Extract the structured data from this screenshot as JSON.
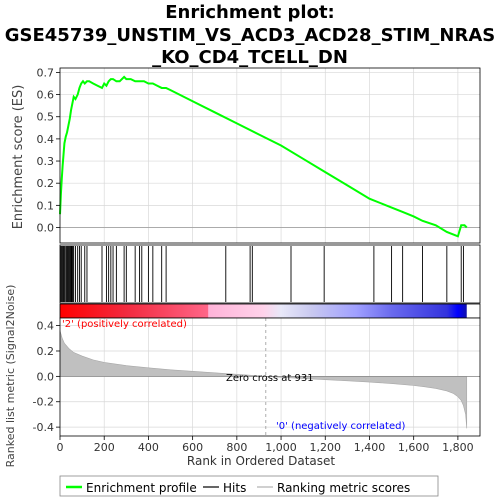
{
  "title_lines": [
    "Enrichment plot:",
    "GSE45739_UNSTIM_VS_ACD3_ACD28_STIM_NRAS",
    "_KO_CD4_TCELL_DN"
  ],
  "colors": {
    "es_line": "#00ff00",
    "hit_line": "#000000",
    "metric_fill": "#c0c0c0",
    "pos_label": "#ff0000",
    "neg_label": "#0000ff",
    "grid": "#d8d8d8"
  },
  "chart_data": [
    {
      "type": "line",
      "name": "enrichment-score",
      "ylabel": "Enrichment score (ES)",
      "ylim": [
        -0.07,
        0.72
      ],
      "xlim": [
        0,
        1900
      ],
      "yticks": [
        0.0,
        0.1,
        0.2,
        0.3,
        0.4,
        0.5,
        0.6,
        0.7
      ],
      "ytick_labels": [
        "0.0",
        "0.1",
        "0.2",
        "0.3",
        "0.4",
        "0.5",
        "0.6",
        "0.7"
      ],
      "grid": true,
      "x": [
        0,
        4,
        8,
        12,
        16,
        20,
        26,
        32,
        38,
        44,
        50,
        56,
        62,
        70,
        80,
        88,
        96,
        104,
        112,
        122,
        132,
        150,
        170,
        190,
        200,
        210,
        220,
        230,
        240,
        255,
        270,
        290,
        300,
        320,
        340,
        360,
        380,
        400,
        420,
        440,
        460,
        480,
        500,
        600,
        700,
        800,
        900,
        1000,
        1100,
        1200,
        1300,
        1400,
        1450,
        1500,
        1550,
        1600,
        1640,
        1700,
        1750,
        1800,
        1815,
        1830,
        1840
      ],
      "y": [
        0.06,
        0.15,
        0.22,
        0.28,
        0.33,
        0.38,
        0.41,
        0.43,
        0.46,
        0.49,
        0.53,
        0.56,
        0.59,
        0.58,
        0.6,
        0.63,
        0.65,
        0.66,
        0.65,
        0.66,
        0.66,
        0.65,
        0.64,
        0.63,
        0.65,
        0.64,
        0.66,
        0.67,
        0.67,
        0.66,
        0.66,
        0.68,
        0.67,
        0.67,
        0.66,
        0.66,
        0.66,
        0.65,
        0.65,
        0.64,
        0.63,
        0.63,
        0.62,
        0.57,
        0.52,
        0.47,
        0.42,
        0.37,
        0.31,
        0.25,
        0.19,
        0.13,
        0.11,
        0.09,
        0.07,
        0.05,
        0.03,
        0.01,
        -0.02,
        -0.04,
        0.01,
        0.01,
        0.0
      ]
    },
    {
      "type": "scatter",
      "name": "hits",
      "x": [
        4,
        8,
        12,
        16,
        20,
        26,
        30,
        34,
        38,
        42,
        46,
        50,
        54,
        58,
        62,
        70,
        80,
        88,
        96,
        112,
        122,
        190,
        210,
        220,
        230,
        240,
        255,
        290,
        300,
        340,
        360,
        370,
        400,
        420,
        460,
        480,
        750,
        860,
        870,
        1045,
        1195,
        1420,
        1500,
        1550,
        1640,
        1750,
        1815,
        1825
      ]
    },
    {
      "type": "area",
      "name": "ranking-metric",
      "ylabel": "Ranked list metric (Signal2Noise)",
      "xlabel": "Rank in Ordered Dataset",
      "ylim": [
        -0.47,
        0.46
      ],
      "xlim": [
        0,
        1900
      ],
      "yticks": [
        -0.4,
        -0.2,
        0.0,
        0.2,
        0.4
      ],
      "ytick_labels": [
        "-0.4",
        "-0.2",
        "0.0",
        "0.2",
        "0.4"
      ],
      "xticks": [
        0,
        200,
        400,
        600,
        800,
        1000,
        1200,
        1400,
        1600,
        1800
      ],
      "xtick_labels": [
        "0",
        "200",
        "400",
        "600",
        "800",
        "1,000",
        "1,200",
        "1,400",
        "1,600",
        "1,800"
      ],
      "x": [
        0,
        5,
        10,
        20,
        40,
        60,
        100,
        150,
        200,
        300,
        400,
        500,
        600,
        700,
        800,
        931,
        1000,
        1100,
        1200,
        1300,
        1400,
        1500,
        1600,
        1650,
        1700,
        1750,
        1780,
        1800,
        1815,
        1825,
        1835,
        1840
      ],
      "y": [
        0.36,
        0.33,
        0.3,
        0.26,
        0.22,
        0.19,
        0.16,
        0.13,
        0.11,
        0.085,
        0.067,
        0.052,
        0.04,
        0.028,
        0.016,
        0.0,
        -0.008,
        -0.017,
        -0.026,
        -0.035,
        -0.045,
        -0.057,
        -0.072,
        -0.082,
        -0.095,
        -0.115,
        -0.135,
        -0.16,
        -0.19,
        -0.23,
        -0.3,
        -0.41
      ]
    }
  ],
  "heatbar": {
    "stops": [
      {
        "rank": 0,
        "color": "#ff0000"
      },
      {
        "rank": 300,
        "color": "#f22a3f"
      },
      {
        "rank": 670,
        "color": "#ff6688"
      },
      {
        "rank": 671,
        "color": "#ffb3d8"
      },
      {
        "rank": 920,
        "color": "#ffd2ea"
      },
      {
        "rank": 1000,
        "color": "#e8e8f8"
      },
      {
        "rank": 1140,
        "color": "#c8c8f0"
      },
      {
        "rank": 1340,
        "color": "#a0a0ff"
      },
      {
        "rank": 1500,
        "color": "#6a6aee"
      },
      {
        "rank": 1750,
        "color": "#3333dd"
      },
      {
        "rank": 1800,
        "color": "#0000ff"
      },
      {
        "rank": 1840,
        "color": "#1010aa"
      }
    ]
  },
  "annotations": {
    "positive": "'2' (positively correlated)",
    "negative": "'0' (negatively correlated)",
    "zero_cross": "Zero cross at 931"
  },
  "legend": {
    "items": [
      {
        "label": "Enrichment profile",
        "color": "#00ff00"
      },
      {
        "label": "Hits",
        "color": "#000000"
      },
      {
        "label": "Ranking metric scores",
        "color": "#c0c0c0"
      }
    ]
  }
}
